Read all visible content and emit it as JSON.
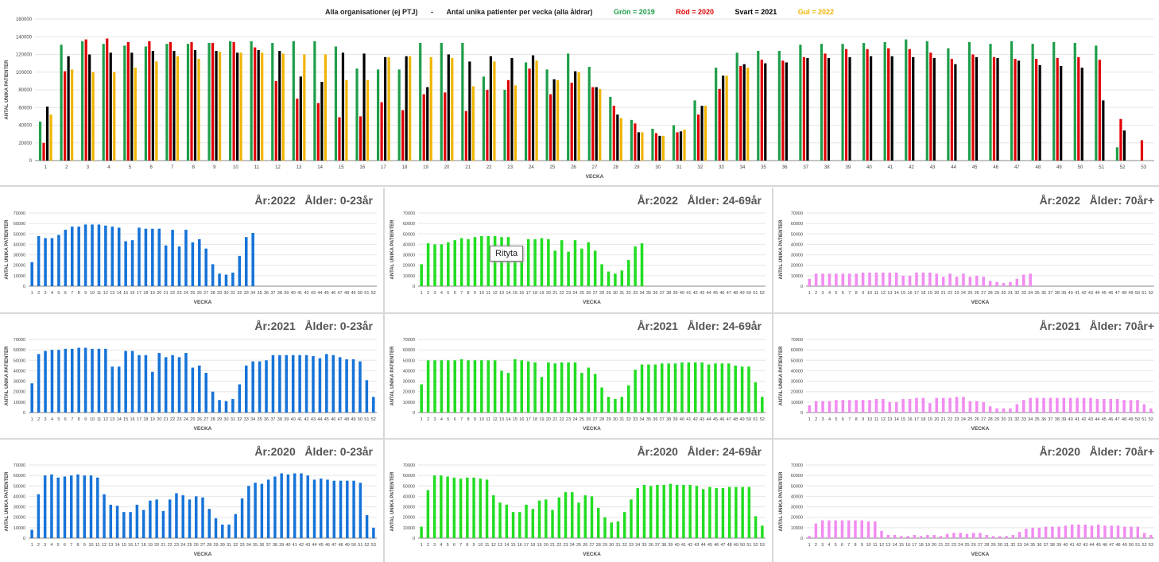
{
  "colors": {
    "green": "#1e9e4a",
    "red": "#e00000",
    "black": "#000000",
    "yellow": "#f0b400",
    "blue": "#1673d8",
    "lime": "#22dd22",
    "pink": "#f08cf0",
    "grid": "#e6e6e6",
    "axis": "#888888"
  },
  "tooltip": "Rityta",
  "chart_data": [
    {
      "type": "bar",
      "title_left": "Alla organisationer (ej PTJ)",
      "title_sep": "-",
      "title_main": "Antal unika patienter per vecka (alla åldrar)",
      "legend": [
        {
          "label": "Grön = 2019",
          "color": "green"
        },
        {
          "label": "Röd = 2020",
          "color": "red"
        },
        {
          "label": "Svart = 2021",
          "color": "black"
        },
        {
          "label": "Gul = 2022",
          "color": "yellow"
        }
      ],
      "xlabel": "VECKA",
      "ylabel": "ANTAL UNIKA PATIENTER",
      "ylim": [
        0,
        160000
      ],
      "yticks": [
        0,
        20000,
        40000,
        60000,
        80000,
        100000,
        120000,
        140000,
        160000
      ],
      "categories": [
        "1",
        "2",
        "3",
        "4",
        "5",
        "6",
        "7",
        "8",
        "9",
        "10",
        "11",
        "12",
        "13",
        "14",
        "15",
        "16",
        "17",
        "18",
        "19",
        "20",
        "21",
        "22",
        "23",
        "24",
        "25",
        "26",
        "27",
        "28",
        "29",
        "30",
        "31",
        "32",
        "33",
        "34",
        "35",
        "36",
        "37",
        "38",
        "39",
        "40",
        "41",
        "42",
        "43",
        "44",
        "45",
        "46",
        "47",
        "48",
        "49",
        "50",
        "51",
        "52",
        "53"
      ],
      "series": [
        {
          "name": "2019",
          "color": "green",
          "values": [
            44000,
            131000,
            135000,
            132000,
            130000,
            129000,
            132000,
            132000,
            133000,
            135000,
            135000,
            133000,
            135000,
            135000,
            129000,
            104000,
            103000,
            103000,
            133000,
            133000,
            133000,
            95000,
            80000,
            111000,
            103000,
            121000,
            106000,
            72000,
            46000,
            36000,
            40000,
            68000,
            105000,
            122000,
            124000,
            124000,
            131000,
            132000,
            132000,
            133000,
            134000,
            137000,
            135000,
            127000,
            134000,
            132000,
            135000,
            132000,
            134000,
            133000,
            130000,
            15000,
            null
          ]
        },
        {
          "name": "2020",
          "color": "red",
          "values": [
            20000,
            101000,
            137000,
            138000,
            134000,
            135000,
            134000,
            134000,
            133000,
            134000,
            128000,
            90000,
            70000,
            65000,
            49000,
            50000,
            66000,
            57000,
            75000,
            77000,
            56000,
            80000,
            91000,
            104000,
            75000,
            88000,
            83000,
            62000,
            42000,
            31000,
            32000,
            52000,
            81000,
            107000,
            114000,
            113000,
            117000,
            121000,
            126000,
            126000,
            127000,
            126000,
            122000,
            115000,
            120000,
            117000,
            115000,
            115000,
            116000,
            117000,
            114000,
            47000,
            23000
          ]
        },
        {
          "name": "2021",
          "color": "black",
          "values": [
            61000,
            118000,
            120000,
            122000,
            122000,
            124000,
            124000,
            125000,
            124000,
            122000,
            125000,
            124000,
            95000,
            89000,
            122000,
            121000,
            117000,
            118000,
            83000,
            120000,
            112000,
            118000,
            116000,
            119000,
            92000,
            101000,
            83000,
            52000,
            32000,
            28000,
            33000,
            62000,
            96000,
            109000,
            110000,
            111000,
            116000,
            116000,
            117000,
            118000,
            118000,
            117000,
            116000,
            109000,
            117000,
            116000,
            113000,
            108000,
            107000,
            105000,
            68000,
            34000,
            null
          ]
        },
        {
          "name": "2022",
          "color": "yellow",
          "values": [
            52000,
            103000,
            100000,
            100000,
            105000,
            112000,
            118000,
            115000,
            123000,
            122000,
            122000,
            121000,
            120000,
            120000,
            91000,
            91000,
            117000,
            118000,
            117000,
            116000,
            84000,
            112000,
            85000,
            113000,
            91000,
            100000,
            81000,
            48000,
            32000,
            28000,
            35000,
            62000,
            96000,
            105000,
            null,
            null,
            null,
            null,
            null,
            null,
            null,
            null,
            null,
            null,
            null,
            null,
            null,
            null,
            null,
            null,
            null,
            null,
            null
          ]
        }
      ]
    },
    {
      "type": "bar",
      "year_label": "År:2022",
      "age_label": "Ålder: 0-23år",
      "xlabel": "VECKA",
      "ylabel": "ANTAL UNIKA PATIENTER",
      "ylim": [
        0,
        70000
      ],
      "yticks": [
        0,
        10000,
        20000,
        30000,
        40000,
        50000,
        60000,
        70000
      ],
      "color": "blue",
      "weeks": 52,
      "values": [
        23000,
        48000,
        46000,
        46000,
        49000,
        54000,
        57000,
        57000,
        59000,
        59000,
        59000,
        58000,
        57000,
        56000,
        43000,
        44000,
        56000,
        55000,
        55000,
        55000,
        39000,
        54000,
        38000,
        54000,
        42000,
        45000,
        36000,
        21000,
        12000,
        11000,
        13000,
        29000,
        47000,
        51000
      ]
    },
    {
      "type": "bar",
      "year_label": "År:2022",
      "age_label": "Ålder: 24-69år",
      "xlabel": "VECKA",
      "ylabel": "ANTAL UNIKA PATIENTER",
      "ylim": [
        0,
        70000
      ],
      "yticks": [
        0,
        10000,
        20000,
        30000,
        40000,
        50000,
        60000,
        70000
      ],
      "color": "lime",
      "weeks": 52,
      "values": [
        21000,
        41000,
        40000,
        40000,
        42000,
        44000,
        46000,
        45000,
        47000,
        48000,
        48000,
        48000,
        47000,
        47000,
        30000,
        28000,
        45000,
        45000,
        46000,
        45000,
        34000,
        44000,
        33000,
        44000,
        36000,
        42000,
        34000,
        21000,
        14000,
        12000,
        15000,
        25000,
        38000,
        41000
      ]
    },
    {
      "type": "bar",
      "year_label": "År:2022",
      "age_label": "Ålder: 70år+",
      "xlabel": "VECKA",
      "ylabel": "ANTAL UNIKA PATIENTER",
      "ylim": [
        0,
        70000
      ],
      "yticks": [
        0,
        10000,
        20000,
        30000,
        40000,
        50000,
        60000,
        70000
      ],
      "color": "pink",
      "weeks": 52,
      "values": [
        7000,
        12000,
        12000,
        12000,
        12000,
        12000,
        12000,
        12000,
        13000,
        13000,
        13000,
        13000,
        13000,
        13000,
        10000,
        10000,
        13000,
        13000,
        13000,
        12000,
        9000,
        12000,
        9000,
        12000,
        9000,
        10000,
        9000,
        5000,
        4000,
        3000,
        4000,
        7000,
        11000,
        12000
      ]
    },
    {
      "type": "bar",
      "year_label": "År:2021",
      "age_label": "Ålder: 0-23år",
      "xlabel": "VECKA",
      "ylabel": "ANTAL UNIKA PATIENTER",
      "ylim": [
        0,
        70000
      ],
      "yticks": [
        0,
        10000,
        20000,
        30000,
        40000,
        50000,
        60000,
        70000
      ],
      "color": "blue",
      "weeks": 52,
      "values": [
        28000,
        56000,
        59000,
        60000,
        60000,
        61000,
        61000,
        62000,
        62000,
        61000,
        61000,
        61000,
        44000,
        44000,
        59000,
        59000,
        55000,
        55000,
        39000,
        57000,
        53000,
        55000,
        53000,
        57000,
        43000,
        45000,
        38000,
        20000,
        12000,
        11000,
        13000,
        27000,
        45000,
        49000,
        49000,
        50000,
        55000,
        55000,
        55000,
        55000,
        55000,
        55000,
        54000,
        52000,
        56000,
        55000,
        53000,
        51000,
        51000,
        49000,
        31000,
        15000
      ]
    },
    {
      "type": "bar",
      "year_label": "År:2021",
      "age_label": "Ålder: 24-69år",
      "xlabel": "VECKA",
      "ylabel": "ANTAL UNIKA PATIENTER",
      "ylim": [
        0,
        70000
      ],
      "yticks": [
        0,
        10000,
        20000,
        30000,
        40000,
        50000,
        60000,
        70000
      ],
      "color": "lime",
      "weeks": 52,
      "values": [
        27000,
        50000,
        50000,
        50000,
        50000,
        50000,
        51000,
        50000,
        50000,
        50000,
        50000,
        50000,
        40000,
        38000,
        51000,
        50000,
        49000,
        48000,
        34000,
        48000,
        47000,
        48000,
        48000,
        48000,
        38000,
        43000,
        37000,
        24000,
        15000,
        13000,
        15000,
        26000,
        41000,
        46000,
        46000,
        46000,
        47000,
        47000,
        47000,
        48000,
        48000,
        48000,
        48000,
        46000,
        47000,
        47000,
        47000,
        45000,
        44000,
        44000,
        29000,
        15000
      ]
    },
    {
      "type": "bar",
      "year_label": "År:2021",
      "age_label": "Ålder: 70år+",
      "xlabel": "VECKA",
      "ylabel": "ANTAL UNIKA PATIENTER",
      "ylim": [
        0,
        70000
      ],
      "yticks": [
        0,
        10000,
        20000,
        30000,
        40000,
        50000,
        60000,
        70000
      ],
      "color": "pink",
      "weeks": 52,
      "values": [
        7000,
        11000,
        11000,
        11000,
        12000,
        12000,
        12000,
        12000,
        12000,
        12000,
        13000,
        13000,
        10000,
        10000,
        13000,
        13000,
        14000,
        14000,
        9000,
        14000,
        14000,
        14000,
        15000,
        15000,
        11000,
        11000,
        10000,
        6000,
        4000,
        4000,
        4000,
        8000,
        12000,
        14000,
        14000,
        14000,
        14000,
        14000,
        14000,
        14000,
        14000,
        14000,
        14000,
        13000,
        13000,
        13000,
        13000,
        12000,
        12000,
        12000,
        8000,
        4000
      ]
    },
    {
      "type": "bar",
      "year_label": "År:2020",
      "age_label": "Ålder: 0-23år",
      "xlabel": "VECKA",
      "ylabel": "ANTAL UNIKA PATIENTER",
      "ylim": [
        0,
        70000
      ],
      "yticks": [
        0,
        10000,
        20000,
        30000,
        40000,
        50000,
        60000,
        70000
      ],
      "color": "blue",
      "weeks": 53,
      "values": [
        8000,
        42000,
        60000,
        61000,
        58000,
        59000,
        60000,
        61000,
        60000,
        60000,
        58000,
        42000,
        32000,
        31000,
        25000,
        25000,
        32000,
        27000,
        36000,
        37000,
        26000,
        37000,
        43000,
        41000,
        37000,
        40000,
        39000,
        28000,
        19000,
        13000,
        13000,
        23000,
        38000,
        50000,
        53000,
        52000,
        56000,
        59000,
        62000,
        61000,
        62000,
        62000,
        60000,
        56000,
        57000,
        56000,
        55000,
        55000,
        55000,
        55000,
        53000,
        22000,
        10000
      ]
    },
    {
      "type": "bar",
      "year_label": "År:2020",
      "age_label": "Ålder: 24-69år",
      "xlabel": "VECKA",
      "ylabel": "ANTAL UNIKA PATIENTER",
      "ylim": [
        0,
        70000
      ],
      "yticks": [
        0,
        10000,
        20000,
        30000,
        40000,
        50000,
        60000,
        70000
      ],
      "color": "lime",
      "weeks": 53,
      "values": [
        11000,
        46000,
        60000,
        60000,
        59000,
        58000,
        57000,
        58000,
        58000,
        57000,
        56000,
        41000,
        34000,
        32000,
        25000,
        25000,
        32000,
        28000,
        36000,
        37000,
        27000,
        39000,
        44000,
        44000,
        34000,
        41000,
        40000,
        29000,
        20000,
        15000,
        16000,
        25000,
        37000,
        48000,
        51000,
        50000,
        51000,
        51000,
        52000,
        51000,
        51000,
        51000,
        50000,
        47000,
        49000,
        48000,
        48000,
        49000,
        49000,
        49000,
        49000,
        21000,
        12000
      ]
    },
    {
      "type": "bar",
      "year_label": "År:2020",
      "age_label": "Ålder: 70år+",
      "xlabel": "VECKA",
      "ylabel": "ANTAL UNIKA PATIENTER",
      "ylim": [
        0,
        70000
      ],
      "yticks": [
        0,
        10000,
        20000,
        30000,
        40000,
        50000,
        60000,
        70000
      ],
      "color": "pink",
      "weeks": 53,
      "values": [
        2000,
        14000,
        17000,
        17000,
        17000,
        17000,
        17000,
        17000,
        17000,
        16000,
        16000,
        7000,
        3000,
        3000,
        2000,
        2000,
        3000,
        2000,
        3000,
        3000,
        2000,
        4000,
        5000,
        5000,
        4000,
        5000,
        5000,
        3000,
        2000,
        2000,
        2000,
        3000,
        6000,
        9000,
        10000,
        10000,
        11000,
        11000,
        11000,
        12000,
        13000,
        13000,
        13000,
        12000,
        13000,
        12000,
        12000,
        12000,
        11000,
        11000,
        11000,
        5000,
        3000
      ]
    }
  ]
}
